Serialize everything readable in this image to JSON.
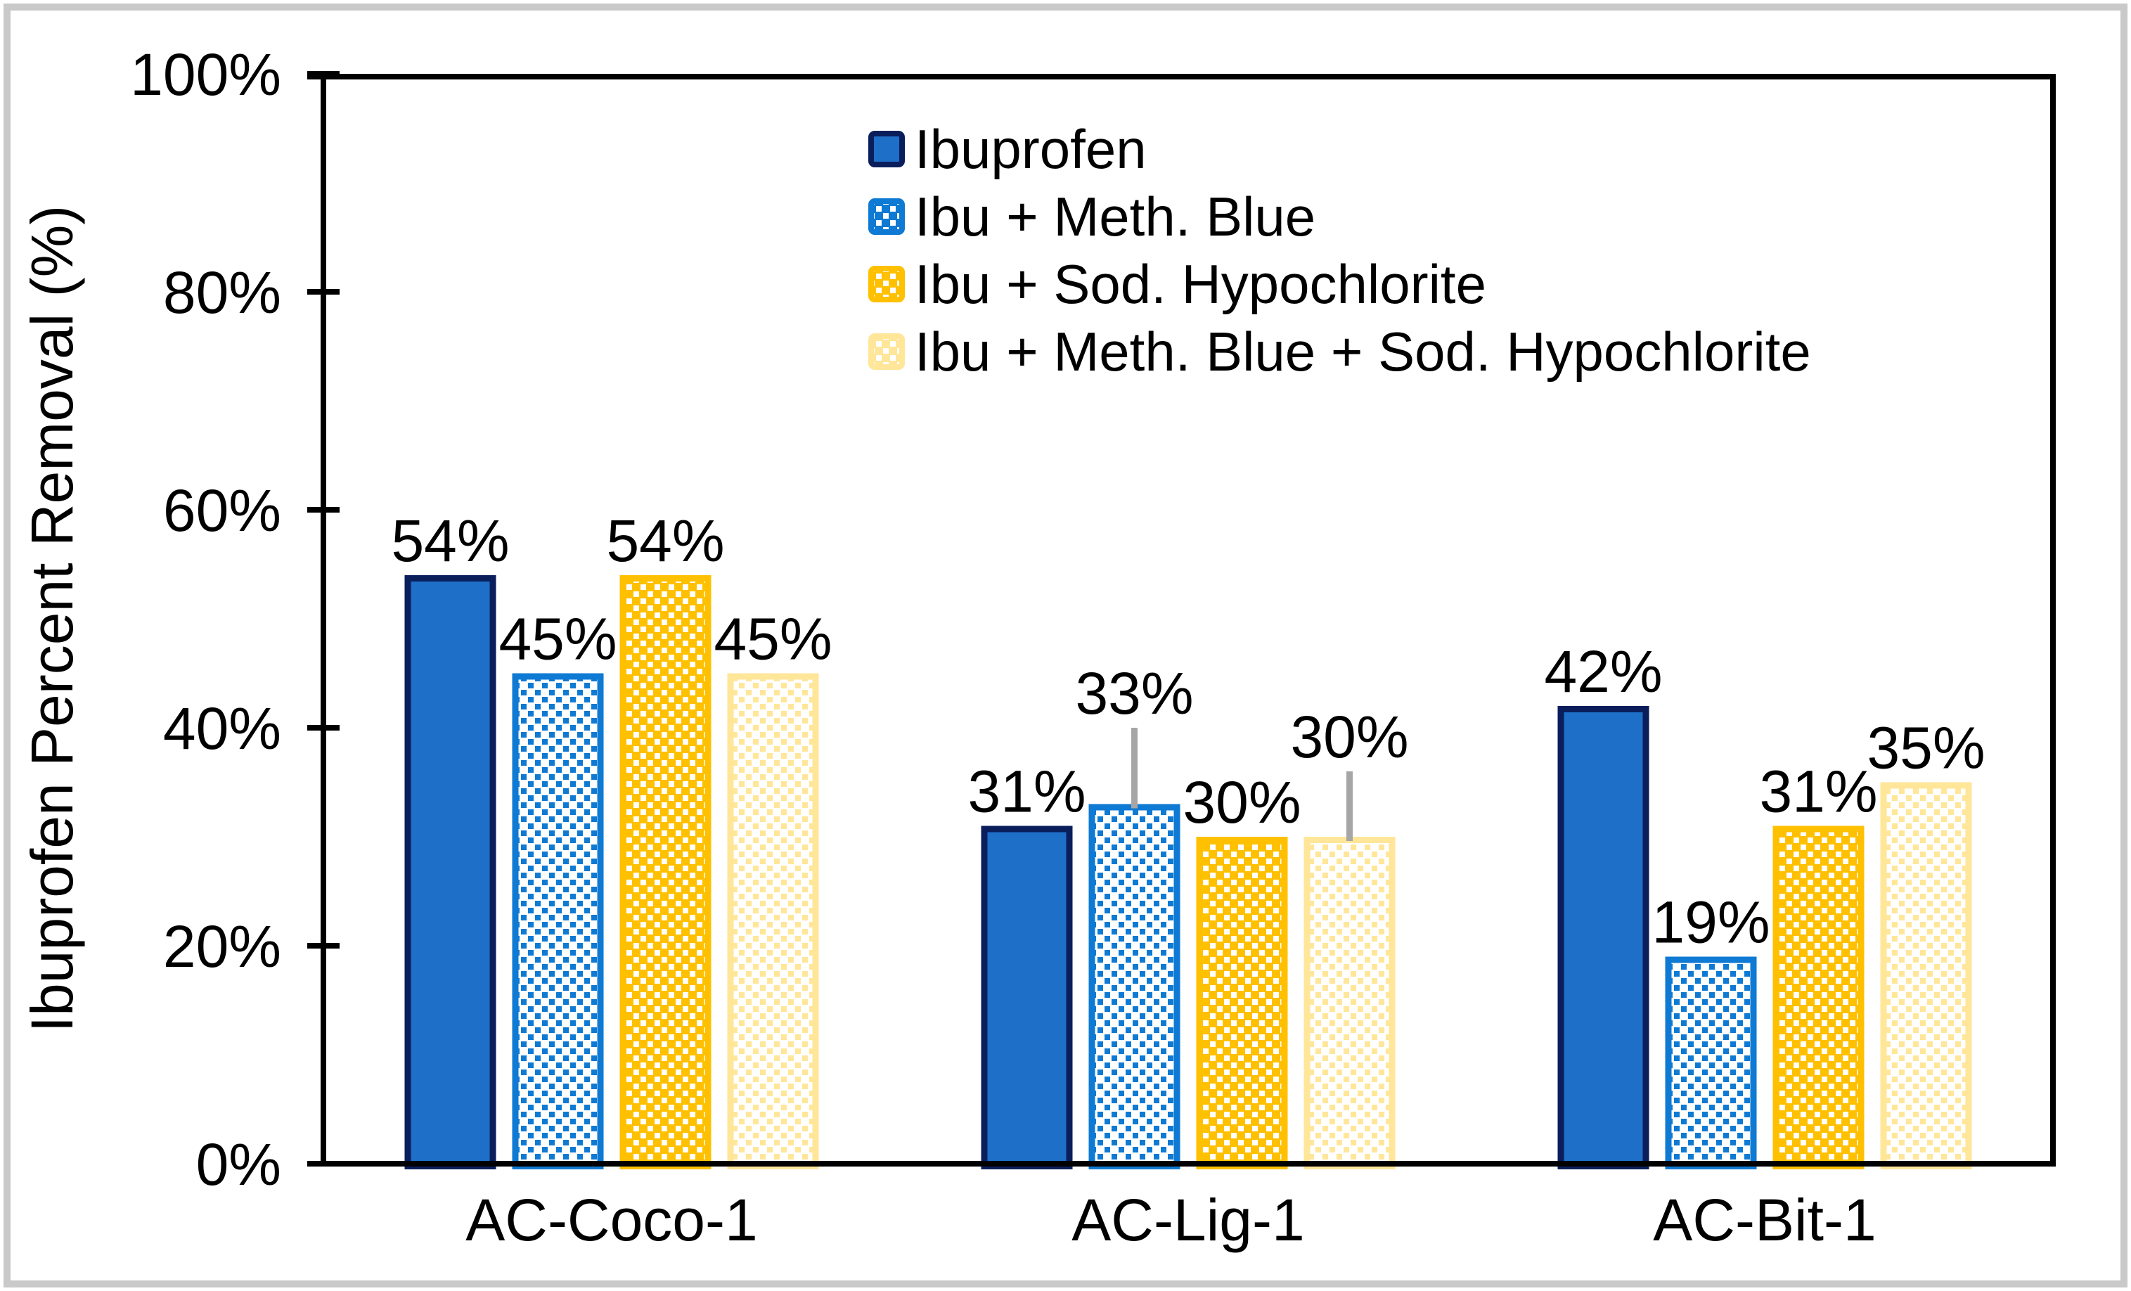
{
  "chart_data": {
    "type": "bar",
    "title": "",
    "xlabel": "",
    "ylabel": "Ibuprofen Percent Removal (%)",
    "categories": [
      "AC-Coco-1",
      "AC-Lig-1",
      "AC-Bit-1"
    ],
    "series": [
      {
        "name": "Ibuprofen",
        "style": "solid-blue",
        "values": [
          54,
          31,
          42
        ],
        "error_up": [
          0,
          0,
          0
        ]
      },
      {
        "name": "Ibu + Meth. Blue",
        "style": "dotted-blue",
        "values": [
          45,
          33,
          19
        ],
        "error_up": [
          0,
          7,
          0
        ]
      },
      {
        "name": "Ibu + Sod. Hypochlorite",
        "style": "dotted-gold",
        "values": [
          54,
          30,
          31
        ],
        "error_up": [
          0,
          0,
          0
        ]
      },
      {
        "name": "Ibu + Meth. Blue + Sod. Hypochlorite",
        "style": "dotted-pale",
        "values": [
          45,
          30,
          35
        ],
        "error_up": [
          0,
          6,
          0
        ]
      }
    ],
    "data_labels": [
      "54%",
      "45%",
      "54%",
      "45%",
      "31%",
      "33%",
      "30%",
      "30%",
      "42%",
      "19%",
      "31%",
      "35%"
    ],
    "y_ticks": [
      0,
      20,
      40,
      60,
      80,
      100
    ],
    "y_tick_labels": [
      "0%",
      "20%",
      "40%",
      "60%",
      "80%",
      "100%"
    ],
    "ylim": [
      0,
      100
    ],
    "grid": "off",
    "legend_position": "inside-top-center",
    "colors": {
      "solid_fill": "#1E6FC8",
      "solid_border": "#0A1E5C",
      "dot_blue": "#0E7AD3",
      "gold": "#FFC000",
      "pale_yellow": "#FFE699",
      "error_bar": "#A6A6A6",
      "axis": "#000000",
      "text": "#000000",
      "frame": "#C9C9C9",
      "background": "#FFFFFF"
    }
  }
}
